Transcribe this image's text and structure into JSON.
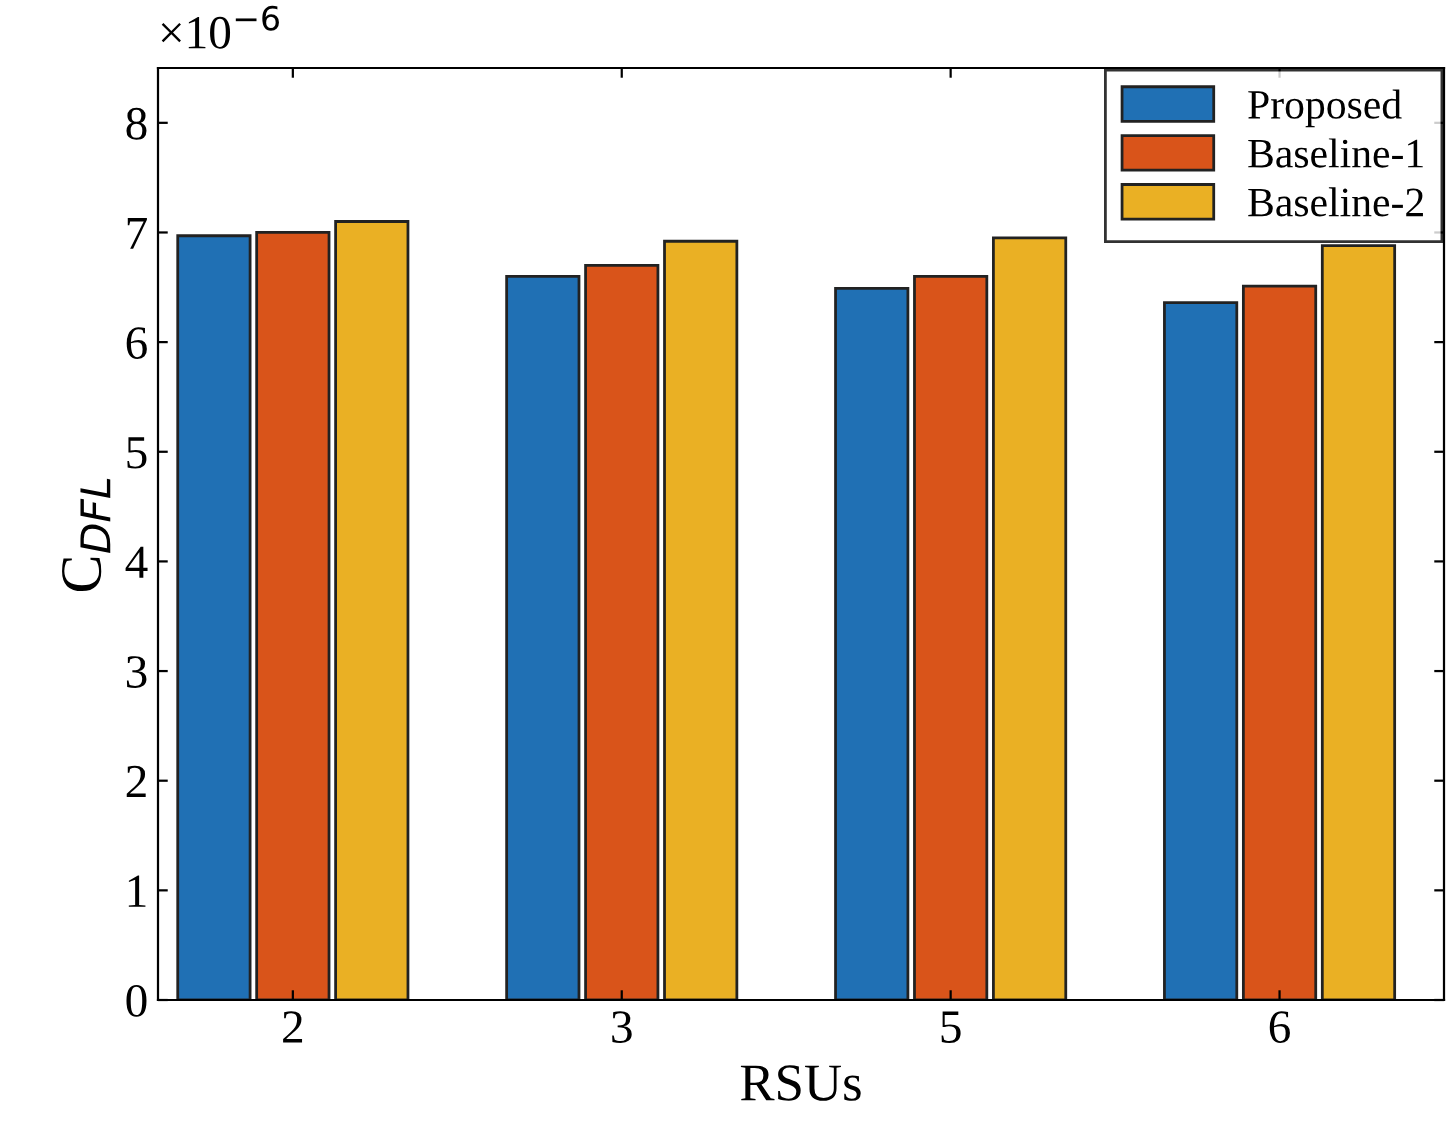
{
  "chart_data": {
    "type": "bar",
    "xlabel": "RSUs",
    "ylabel": "C$_{DFL}$",
    "annotations": [
      "×10$^{−6}$"
    ],
    "categories": [
      "2",
      "3",
      "5",
      "6"
    ],
    "series": [
      {
        "name": "Proposed",
        "color": "#2070b4",
        "values": [
          6.97,
          6.6,
          6.49,
          6.36
        ]
      },
      {
        "name": "Baseline-1",
        "color": "#d9541a",
        "values": [
          7.0,
          6.7,
          6.6,
          6.51
        ]
      },
      {
        "name": "Baseline-2",
        "color": "#eab024",
        "values": [
          7.1,
          6.92,
          6.95,
          6.88
        ]
      }
    ],
    "ylim": [
      0,
      8.5
    ],
    "yticks": [
      0,
      1,
      2,
      3,
      4,
      5,
      6,
      7,
      8
    ],
    "grid": false,
    "legend": "top right"
  }
}
